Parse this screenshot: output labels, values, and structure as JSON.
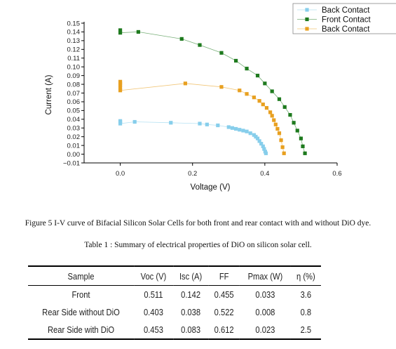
{
  "chart_data": {
    "type": "scatter",
    "title": "",
    "xlabel": "Voltage (V)",
    "ylabel": "Current (A)",
    "xlim": [
      -0.1,
      0.6
    ],
    "ylim": [
      -0.01,
      0.15
    ],
    "x_ticks": [
      "0.0",
      "0.2",
      "0.4",
      "0.6"
    ],
    "x_tick_values": [
      0.0,
      0.2,
      0.4,
      0.6
    ],
    "y_ticks": [
      "−0.01",
      "0.00",
      "0.01",
      "0.02",
      "0.03",
      "0.04",
      "0.05",
      "0.06",
      "0.07",
      "0.08",
      "0.09",
      "0.10",
      "0.11",
      "0.12",
      "0.13",
      "0.14",
      "0.15"
    ],
    "y_tick_values": [
      -0.01,
      0.0,
      0.01,
      0.02,
      0.03,
      0.04,
      0.05,
      0.06,
      0.07,
      0.08,
      0.09,
      0.1,
      0.11,
      0.12,
      0.13,
      0.14,
      0.15
    ],
    "grid": false,
    "legend_position": "top-right",
    "series": [
      {
        "name": "Back Contact",
        "color": "#87CEEB",
        "x": [
          0.0,
          0.0,
          0.0,
          0.04,
          0.14,
          0.22,
          0.24,
          0.27,
          0.3,
          0.31,
          0.32,
          0.33,
          0.34,
          0.35,
          0.36,
          0.37,
          0.375,
          0.38,
          0.385,
          0.39,
          0.395,
          0.398,
          0.401,
          0.403
        ],
        "y": [
          0.038,
          0.037,
          0.035,
          0.037,
          0.036,
          0.035,
          0.034,
          0.033,
          0.031,
          0.03,
          0.029,
          0.028,
          0.027,
          0.026,
          0.024,
          0.022,
          0.02,
          0.018,
          0.015,
          0.012,
          0.009,
          0.006,
          0.003,
          0.001
        ]
      },
      {
        "name": "Front Contact",
        "color": "#1E7A1E",
        "x": [
          0.0,
          0.0,
          0.05,
          0.17,
          0.22,
          0.28,
          0.32,
          0.35,
          0.38,
          0.4,
          0.42,
          0.44,
          0.455,
          0.47,
          0.48,
          0.49,
          0.5,
          0.505,
          0.511
        ],
        "y": [
          0.142,
          0.139,
          0.14,
          0.132,
          0.125,
          0.116,
          0.107,
          0.098,
          0.09,
          0.081,
          0.072,
          0.063,
          0.054,
          0.045,
          0.036,
          0.027,
          0.018,
          0.009,
          0.001
        ]
      },
      {
        "name": "Back Contact",
        "color": "#E8A020",
        "x": [
          0.0,
          0.0,
          0.0,
          0.0,
          0.0,
          0.18,
          0.28,
          0.33,
          0.35,
          0.37,
          0.385,
          0.395,
          0.405,
          0.415,
          0.42,
          0.425,
          0.43,
          0.435,
          0.44,
          0.445,
          0.449,
          0.453
        ],
        "y": [
          0.083,
          0.081,
          0.079,
          0.076,
          0.073,
          0.081,
          0.077,
          0.073,
          0.069,
          0.065,
          0.061,
          0.057,
          0.053,
          0.048,
          0.044,
          0.039,
          0.034,
          0.029,
          0.024,
          0.016,
          0.008,
          0.001
        ]
      }
    ]
  },
  "figure_caption": "Figure 5 I-V curve of Bifacial Silicon Solar Cells for both front and rear contact with and without DiO dye.",
  "table_caption": "Table 1 : Summary of electrical properties of DiO on silicon solar cell.",
  "table": {
    "headers": [
      "Sample",
      "Voc (V)",
      "Isc (A)",
      "FF",
      "Pmax (W)",
      "η (%)"
    ],
    "rows": [
      [
        "Front",
        "0.511",
        "0.142",
        "0.455",
        "0.033",
        "3.6"
      ],
      [
        "Rear Side without DiO",
        "0.403",
        "0.038",
        "0.522",
        "0.008",
        "0.8"
      ],
      [
        "Rear Side with DiO",
        "0.453",
        "0.083",
        "0.612",
        "0.023",
        "2.5"
      ]
    ]
  }
}
